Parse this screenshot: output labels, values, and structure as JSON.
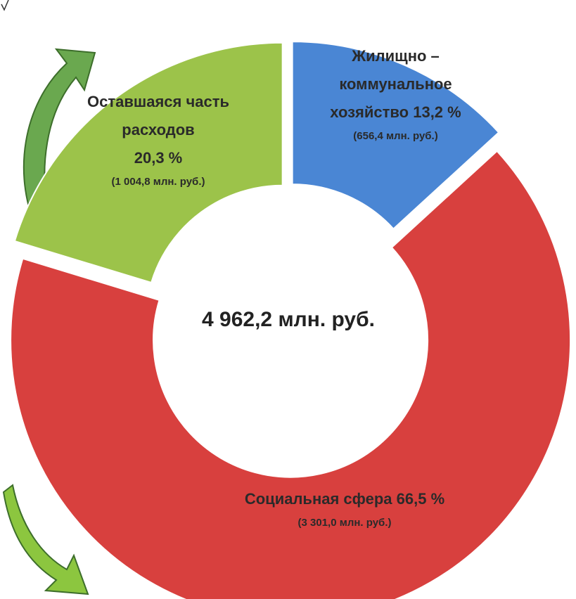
{
  "chart_data": {
    "type": "donut",
    "center_label": "4 962,2 млн. руб.",
    "categories": [
      "Жилищно – коммунальное хозяйство",
      "Социальная сфера",
      "Оставшаяся часть расходов"
    ],
    "values": [
      13.2,
      66.5,
      20.3
    ],
    "value_labels": [
      "13,2 %",
      "66,5 %",
      "20,3 %"
    ],
    "amounts": [
      "(656,4 млн. руб.)",
      "(3 301,0 млн. руб.)",
      "(1 004,8 млн. руб.)"
    ],
    "colors": [
      "#4a86d4",
      "#d8403e",
      "#9cc34a"
    ]
  }
}
